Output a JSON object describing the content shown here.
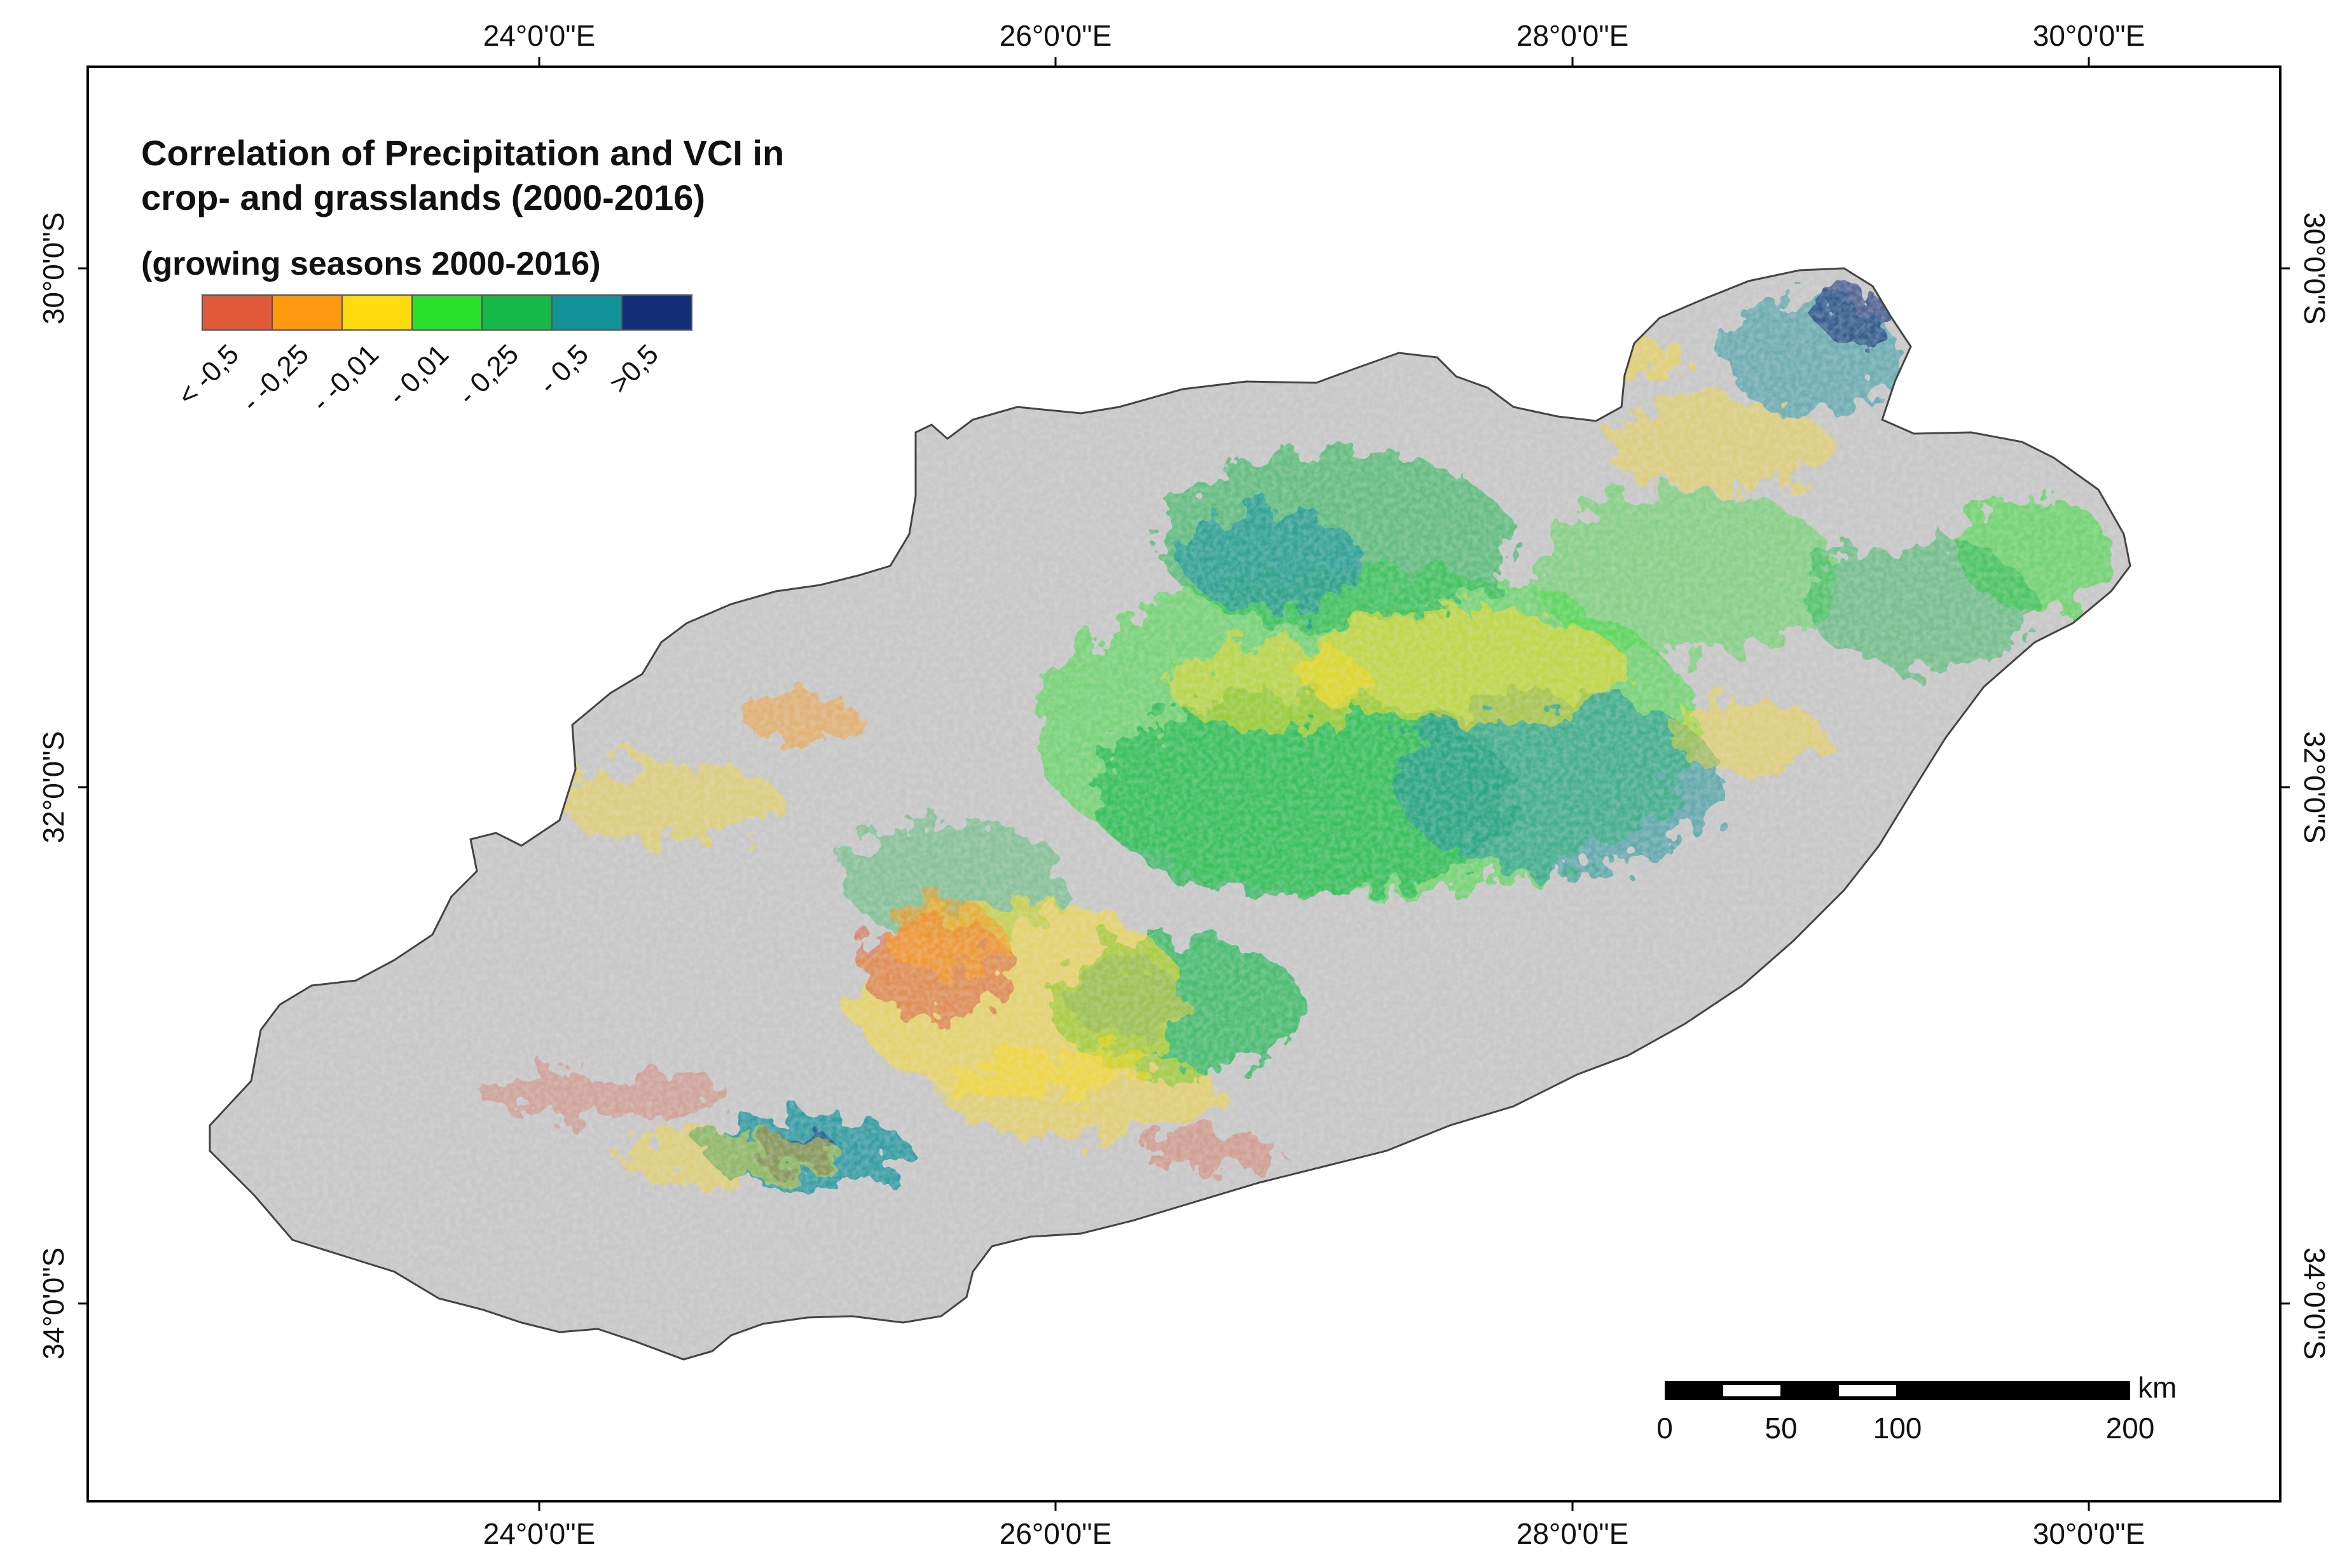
{
  "map": {
    "title_line1": "Correlation of Precipitation and VCI in",
    "title_line2": "crop- and grasslands (2000-2016)",
    "subtitle": "(growing seasons 2000-2016)",
    "colors": {
      "land_no_data": "#c8c8c8",
      "outline": "#444444",
      "frame": "#000000",
      "background": "#ffffff"
    }
  },
  "legend": {
    "classes": [
      {
        "label": "< -0,5",
        "color": "#e05a3a"
      },
      {
        "label": "- -0,25",
        "color": "#ff9a10"
      },
      {
        "label": "- -0,01",
        "color": "#ffdc10"
      },
      {
        "label": "- 0,01",
        "color": "#2be02b"
      },
      {
        "label": "- 0,25",
        "color": "#16b84a"
      },
      {
        "label": "- 0,5",
        "color": "#12939a"
      },
      {
        "label": ">0,5",
        "color": "#132e78"
      }
    ]
  },
  "axes": {
    "top_labels": [
      "24°0'0\"E",
      "26°0'0\"E",
      "28°0'0\"E",
      "30°0'0\"E"
    ],
    "bottom_labels": [
      "24°0'0\"E",
      "26°0'0\"E",
      "28°0'0\"E",
      "30°0'0\"E"
    ],
    "left_labels": [
      "30°0'0\"S",
      "32°0'0\"S",
      "34°0'0\"S"
    ],
    "right_labels": [
      "30°0'0\"S",
      "32°0'0\"S",
      "34°0'0\"S"
    ]
  },
  "scale_bar": {
    "unit": "km",
    "labels": [
      "0",
      "50",
      "100",
      "200"
    ]
  }
}
